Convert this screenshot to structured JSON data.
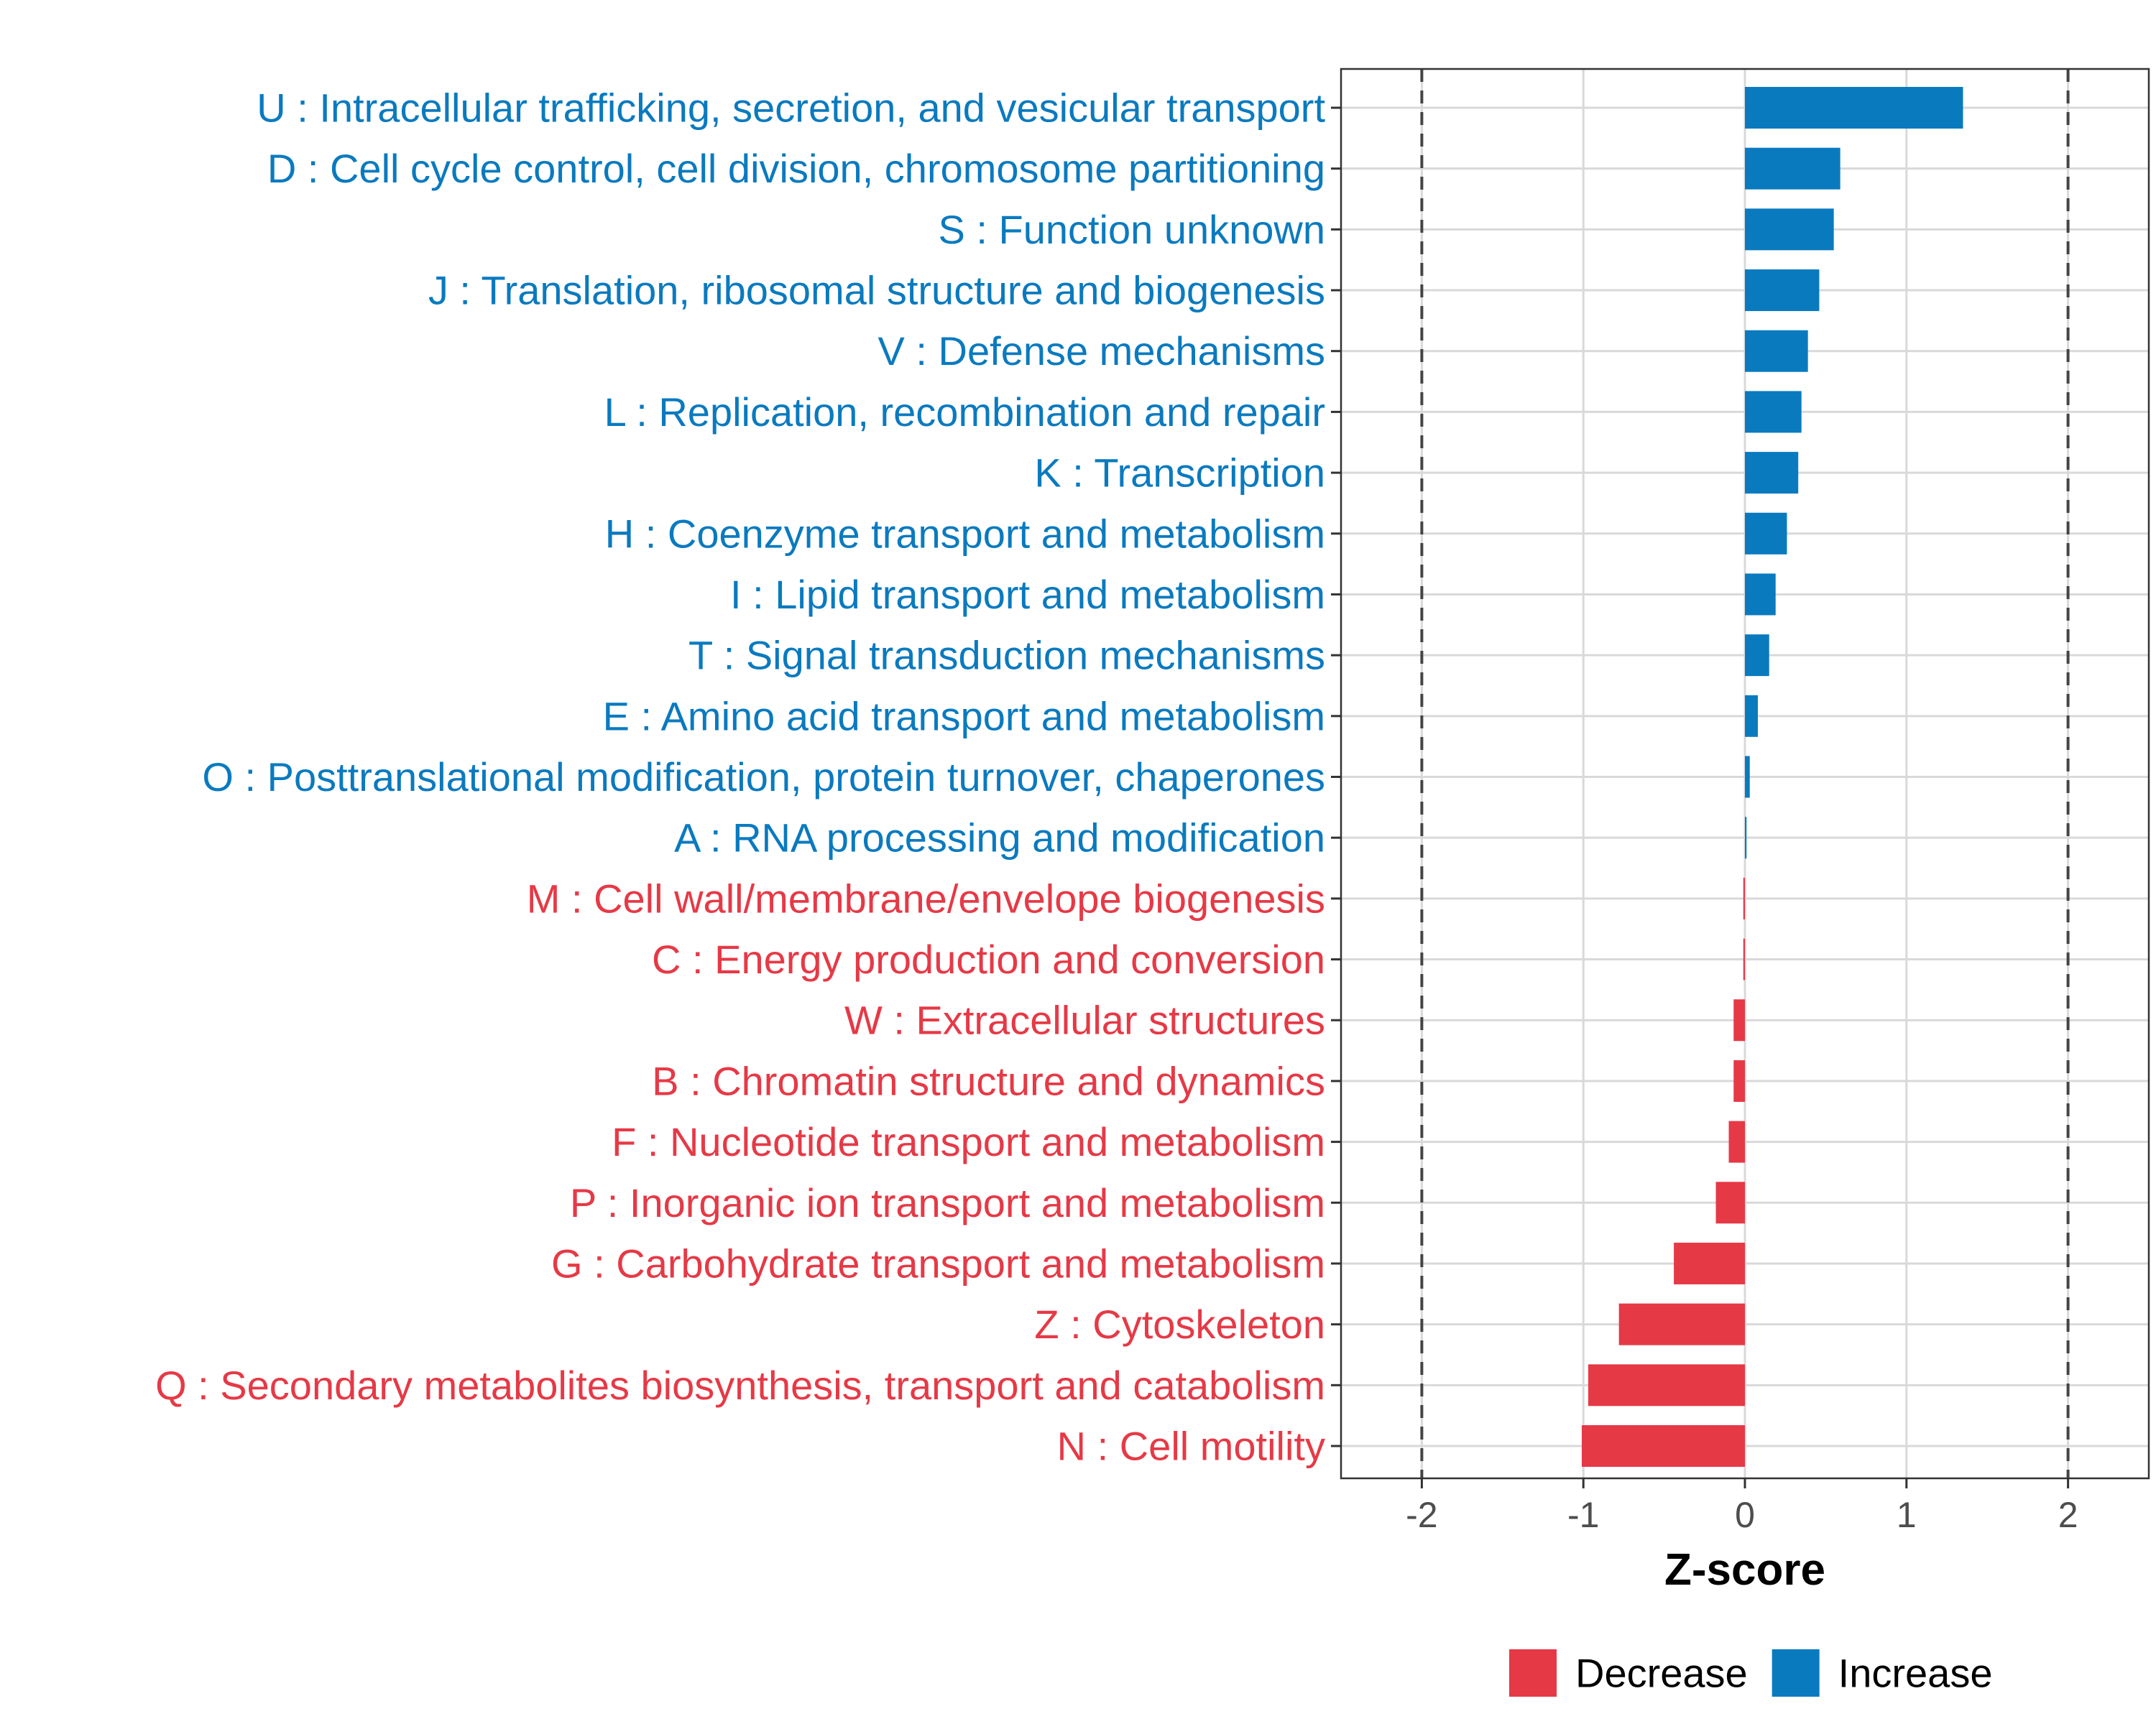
{
  "chart_data": {
    "type": "bar",
    "orientation": "horizontal",
    "title": "",
    "xlabel": "Z-score",
    "ylabel": "",
    "xlim": [
      -2.5,
      2.5
    ],
    "xticks": [
      "-2",
      "-1",
      "0",
      "1",
      "2"
    ],
    "xtick_values": [
      -2,
      -1,
      0,
      1,
      2
    ],
    "reference_lines": [
      -2,
      2
    ],
    "grid": true,
    "legend_position": "bottom",
    "colors": {
      "Increase": "#0a7abf",
      "Decrease": "#e63946"
    },
    "legend": [
      {
        "label": "Decrease",
        "color": "#e63946"
      },
      {
        "label": "Increase",
        "color": "#0a7abf"
      }
    ],
    "bars": [
      {
        "label": "U : Intracellular trafficking, secretion, and vesicular transport",
        "value": 1.35,
        "direction": "Increase"
      },
      {
        "label": "D : Cell cycle control, cell division, chromosome partitioning",
        "value": 0.59,
        "direction": "Increase"
      },
      {
        "label": "S : Function unknown",
        "value": 0.55,
        "direction": "Increase"
      },
      {
        "label": "J : Translation, ribosomal structure and biogenesis",
        "value": 0.46,
        "direction": "Increase"
      },
      {
        "label": "V : Defense mechanisms",
        "value": 0.39,
        "direction": "Increase"
      },
      {
        "label": "L : Replication, recombination and repair",
        "value": 0.35,
        "direction": "Increase"
      },
      {
        "label": "K : Transcription",
        "value": 0.33,
        "direction": "Increase"
      },
      {
        "label": "H : Coenzyme transport and metabolism",
        "value": 0.26,
        "direction": "Increase"
      },
      {
        "label": "I : Lipid transport and metabolism",
        "value": 0.19,
        "direction": "Increase"
      },
      {
        "label": "T : Signal transduction mechanisms",
        "value": 0.15,
        "direction": "Increase"
      },
      {
        "label": "E : Amino acid transport and metabolism",
        "value": 0.08,
        "direction": "Increase"
      },
      {
        "label": "O : Posttranslational modification, protein turnover, chaperones",
        "value": 0.03,
        "direction": "Increase"
      },
      {
        "label": "A : RNA processing and modification",
        "value": 0.01,
        "direction": "Increase"
      },
      {
        "label": "M : Cell wall/membrane/envelope biogenesis",
        "value": -0.01,
        "direction": "Decrease"
      },
      {
        "label": "C : Energy production and conversion",
        "value": -0.01,
        "direction": "Decrease"
      },
      {
        "label": "W : Extracellular structures",
        "value": -0.07,
        "direction": "Decrease"
      },
      {
        "label": "B : Chromatin structure and dynamics",
        "value": -0.07,
        "direction": "Decrease"
      },
      {
        "label": "F : Nucleotide transport and metabolism",
        "value": -0.1,
        "direction": "Decrease"
      },
      {
        "label": "P : Inorganic ion transport and metabolism",
        "value": -0.18,
        "direction": "Decrease"
      },
      {
        "label": "G : Carbohydrate transport and metabolism",
        "value": -0.44,
        "direction": "Decrease"
      },
      {
        "label": "Z : Cytoskeleton",
        "value": -0.78,
        "direction": "Decrease"
      },
      {
        "label": "Q : Secondary metabolites biosynthesis, transport and catabolism",
        "value": -0.97,
        "direction": "Decrease"
      },
      {
        "label": "N : Cell motility",
        "value": -1.01,
        "direction": "Decrease"
      }
    ]
  }
}
